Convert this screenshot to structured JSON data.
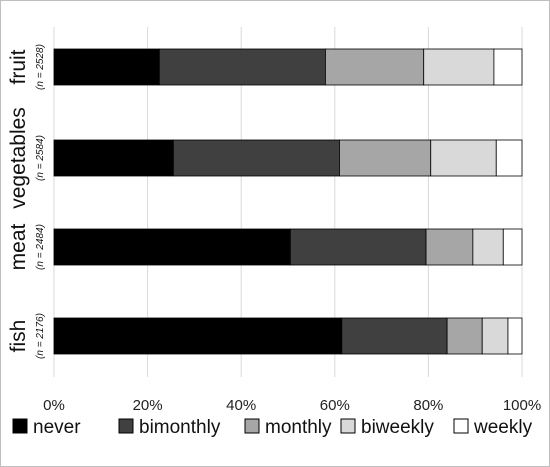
{
  "chart_data": {
    "type": "bar",
    "orientation": "horizontal",
    "stacked": true,
    "percent": true,
    "categories": [
      "fruit",
      "vegetables",
      "meat",
      "fish"
    ],
    "sample_sizes": [
      "(n = 2528)",
      "(n = 2584)",
      "(n = 2484)",
      "(n = 2176)"
    ],
    "series": [
      {
        "name": "never",
        "color": "#000000",
        "values": [
          22.5,
          25.5,
          50.5,
          61.5
        ]
      },
      {
        "name": "bimonthly",
        "color": "#404040",
        "values": [
          35.5,
          35.5,
          29.0,
          22.5
        ]
      },
      {
        "name": "monthly",
        "color": "#a6a6a6",
        "values": [
          21.0,
          19.5,
          10.0,
          7.5
        ]
      },
      {
        "name": "biweekly",
        "color": "#d9d9d9",
        "values": [
          15.0,
          14.0,
          6.5,
          5.5
        ]
      },
      {
        "name": "weekly",
        "color": "#ffffff",
        "values": [
          6.0,
          5.5,
          4.0,
          3.0
        ]
      }
    ],
    "xlim": [
      0,
      100
    ],
    "xticks": [
      "0%",
      "20%",
      "40%",
      "60%",
      "80%",
      "100%"
    ],
    "grid": "vertical",
    "legend": "bottom",
    "title": "",
    "xlabel": "",
    "ylabel": ""
  }
}
